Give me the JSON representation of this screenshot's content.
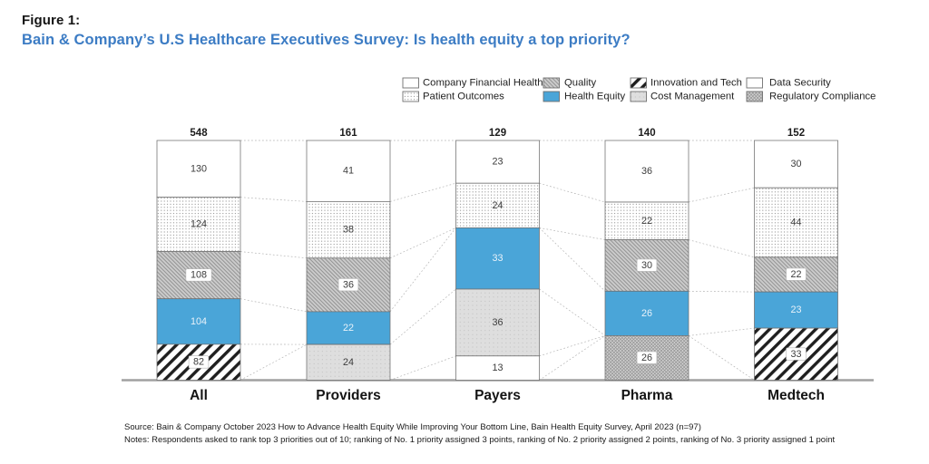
{
  "figure_label": "Figure 1:",
  "title": "Bain & Company’s U.S Healthcare Executives Survey: Is health equity a top priority?",
  "source": "Source: Bain & Company October 2023 How to Advance Health Equity While Improving Your Bottom Line, Bain Health Equity Survey, April 2023 (n=97)",
  "notes": "Notes: Respondents asked to rank top 3 priorities out of 10; ranking of No. 1 priority assigned 3 points, ranking of No. 2 priority assigned 2 points, ranking of No. 3 priority assigned 1 point",
  "colors": {
    "title_blue": "#3C7CC4",
    "health_equity_blue": "#4AA5D8",
    "connector": "#b3b3b3",
    "baseline": "#a0a0a0",
    "segment_stroke": "#6f6f6f",
    "value_text": "#3c3c3c",
    "value_text_light": "#e8f2fa"
  },
  "chart_data": {
    "type": "bar",
    "variant": "100%-stacked-columns-with-connector-lines",
    "title": "Bain & Company’s U.S Healthcare Executives Survey: Is health equity a top priority?",
    "categories": [
      "All",
      "Providers",
      "Payers",
      "Pharma",
      "Medtech"
    ],
    "totals": [
      548,
      161,
      129,
      140,
      152
    ],
    "series": [
      {
        "name": "Company Financial Health",
        "key": "cfh",
        "pattern": "plain-white",
        "label_style": "plain",
        "values": [
          130,
          41,
          23,
          36,
          30
        ]
      },
      {
        "name": "Patient Outcomes",
        "key": "po",
        "pattern": "dots-on-white",
        "label_style": "plain",
        "values": [
          124,
          38,
          24,
          22,
          44
        ]
      },
      {
        "name": "Quality",
        "key": "q",
        "pattern": "diagonal-hatch-gray",
        "label_style": "chip",
        "values": [
          108,
          36,
          0,
          30,
          22
        ]
      },
      {
        "name": "Health Equity",
        "key": "he",
        "pattern": "solid-blue",
        "label_style": "light",
        "values": [
          104,
          22,
          33,
          26,
          23
        ]
      },
      {
        "name": "Innovation and Tech",
        "key": "it",
        "pattern": "bold-diagonal-stripes",
        "label_style": "chip",
        "values": [
          82,
          0,
          0,
          0,
          33
        ]
      },
      {
        "name": "Cost Management",
        "key": "cm",
        "pattern": "light-gray-dots",
        "label_style": "plain",
        "values": [
          0,
          24,
          36,
          0,
          0
        ]
      },
      {
        "name": "Data Security",
        "key": "ds",
        "pattern": "plain-white",
        "label_style": "plain",
        "values": [
          0,
          0,
          13,
          0,
          0
        ]
      },
      {
        "name": "Regulatory Compliance",
        "key": "rc",
        "pattern": "crosshatch-gray",
        "label_style": "chip",
        "values": [
          0,
          0,
          0,
          26,
          0
        ]
      }
    ],
    "legend_columns": [
      [
        {
          "label": "Company Financial Health",
          "key": "cfh"
        },
        {
          "label": "Patient Outcomes",
          "key": "po"
        }
      ],
      [
        {
          "label": "Quality",
          "key": "q"
        },
        {
          "label": "Health Equity",
          "key": "he"
        }
      ],
      [
        {
          "label": "Innovation and Tech",
          "key": "it"
        },
        {
          "label": "Cost Management",
          "key": "cm"
        }
      ],
      [
        {
          "label": "Data Security",
          "key": "ds"
        },
        {
          "label": "Regulatory Compliance",
          "key": "rc"
        }
      ]
    ],
    "ylim": [
      0,
      1
    ],
    "grid": false,
    "legend_position": "top-right"
  }
}
